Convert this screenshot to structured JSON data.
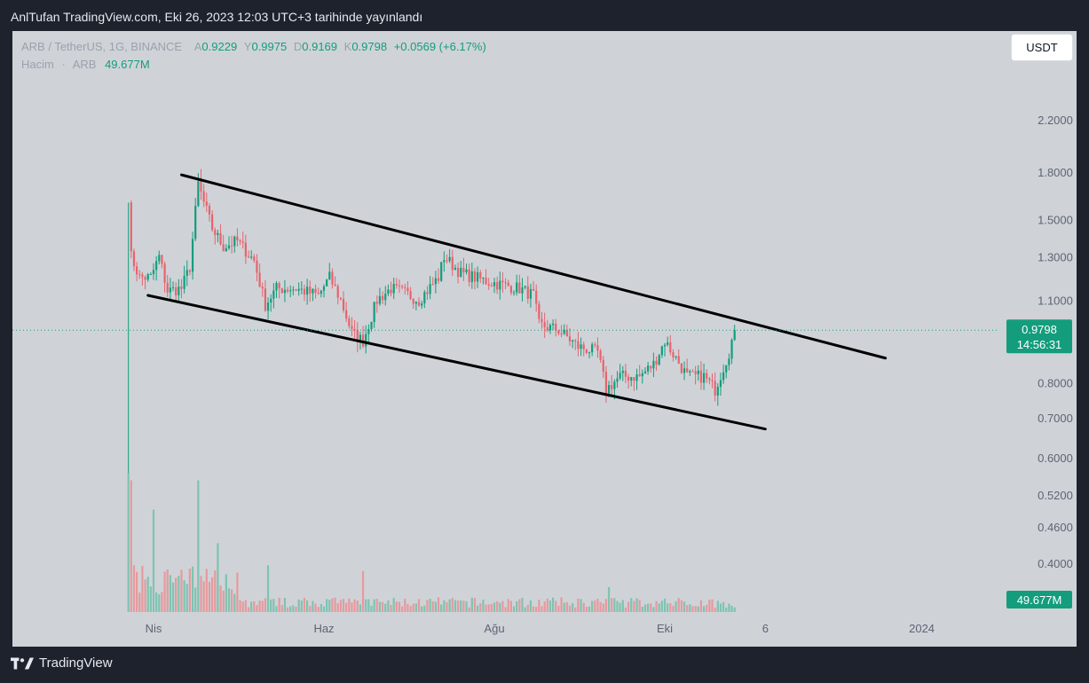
{
  "header": {
    "caption": "AnlTufan TradingView.com, Eki 26, 2023 12:03 UTC+3 tarihinde yayınlandı"
  },
  "legend": {
    "symbol": "ARB / TetherUS, 1G, BINANCE",
    "open_label": "A",
    "open": "0.9229",
    "high_label": "Y",
    "high": "0.9975",
    "low_label": "D",
    "low": "0.9169",
    "close_label": "K",
    "close": "0.9798",
    "change": "+0.0569 (+6.17%)",
    "volume_label": "Hacim",
    "volume_symbol": "ARB",
    "volume_value": "49.677M"
  },
  "currency_button": "USDT",
  "footer": {
    "brand": "TradingView"
  },
  "colors": {
    "up": "#139d7c",
    "down": "#e8636c",
    "up_volume": "#7fc3b1",
    "down_volume": "#e69a9d",
    "background": "#cfd3d8",
    "frame": "#1e222d",
    "trendline": "#000000"
  },
  "chart_data": {
    "type": "candlestick",
    "scale": "log",
    "y_axis_ticks": [
      2.2,
      1.8,
      1.5,
      1.3,
      1.1,
      0.8,
      0.7,
      0.6,
      0.52,
      0.46,
      0.4
    ],
    "y_axis_labels": [
      "2.2000",
      "1.8000",
      "1.5000",
      "1.3000",
      "1.1000",
      "0.8000",
      "0.7000",
      "0.6000",
      "0.5200",
      "0.4600",
      "0.4000"
    ],
    "x_axis_labels": [
      {
        "label": "Nis",
        "date": "2023-04-01"
      },
      {
        "label": "Haz",
        "date": "2023-06-01"
      },
      {
        "label": "Ağu",
        "date": "2023-08-01"
      },
      {
        "label": "Eki",
        "date": "2023-10-01"
      },
      {
        "label": "6",
        "date": "2023-11-06"
      },
      {
        "label": "2024",
        "date": "2024-01-01"
      }
    ],
    "last_price": {
      "value": 0.9798,
      "label": "0.9798",
      "countdown": "14:56:31"
    },
    "volume_last": {
      "label": "49.677M"
    },
    "anchors": [
      {
        "date": "2023-03-23",
        "close": 0.5
      },
      {
        "date": "2023-03-24",
        "close": 1.3
      },
      {
        "date": "2023-03-27",
        "close": 1.2
      },
      {
        "date": "2023-03-31",
        "close": 1.2
      },
      {
        "date": "2023-04-03",
        "close": 1.3
      },
      {
        "date": "2023-04-06",
        "close": 1.14
      },
      {
        "date": "2023-04-11",
        "close": 1.15
      },
      {
        "date": "2023-04-14",
        "close": 1.25
      },
      {
        "date": "2023-04-17",
        "close": 1.72
      },
      {
        "date": "2023-04-19",
        "close": 1.6
      },
      {
        "date": "2023-04-22",
        "close": 1.45
      },
      {
        "date": "2023-04-26",
        "close": 1.35
      },
      {
        "date": "2023-05-01",
        "close": 1.38
      },
      {
        "date": "2023-05-07",
        "close": 1.28
      },
      {
        "date": "2023-05-11",
        "close": 1.08
      },
      {
        "date": "2023-05-15",
        "close": 1.15
      },
      {
        "date": "2023-05-22",
        "close": 1.15
      },
      {
        "date": "2023-05-30",
        "close": 1.12
      },
      {
        "date": "2023-06-03",
        "close": 1.2
      },
      {
        "date": "2023-06-07",
        "close": 1.1
      },
      {
        "date": "2023-06-11",
        "close": 0.97
      },
      {
        "date": "2023-06-15",
        "close": 0.94
      },
      {
        "date": "2023-06-20",
        "close": 1.1
      },
      {
        "date": "2023-06-25",
        "close": 1.15
      },
      {
        "date": "2023-06-30",
        "close": 1.13
      },
      {
        "date": "2023-07-05",
        "close": 1.1
      },
      {
        "date": "2023-07-12",
        "close": 1.2
      },
      {
        "date": "2023-07-14",
        "close": 1.3
      },
      {
        "date": "2023-07-20",
        "close": 1.22
      },
      {
        "date": "2023-07-30",
        "close": 1.18
      },
      {
        "date": "2023-08-10",
        "close": 1.15
      },
      {
        "date": "2023-08-15",
        "close": 1.12
      },
      {
        "date": "2023-08-17",
        "close": 1.0
      },
      {
        "date": "2023-08-24",
        "close": 0.98
      },
      {
        "date": "2023-08-31",
        "close": 0.92
      },
      {
        "date": "2023-09-07",
        "close": 0.9
      },
      {
        "date": "2023-09-10",
        "close": 0.78
      },
      {
        "date": "2023-09-15",
        "close": 0.82
      },
      {
        "date": "2023-09-22",
        "close": 0.82
      },
      {
        "date": "2023-09-27",
        "close": 0.86
      },
      {
        "date": "2023-10-01",
        "close": 0.94
      },
      {
        "date": "2023-10-05",
        "close": 0.88
      },
      {
        "date": "2023-10-09",
        "close": 0.82
      },
      {
        "date": "2023-10-15",
        "close": 0.82
      },
      {
        "date": "2023-10-19",
        "close": 0.78
      },
      {
        "date": "2023-10-24",
        "close": 0.9
      },
      {
        "date": "2023-10-26",
        "close": 0.9798
      }
    ],
    "trendlines": [
      {
        "name": "upper-channel",
        "start": {
          "date": "2023-04-11",
          "price": 1.78
        },
        "end": {
          "date": "2023-12-19",
          "price": 0.88
        }
      },
      {
        "name": "lower-channel",
        "start": {
          "date": "2023-03-30",
          "price": 1.12
        },
        "end": {
          "date": "2023-11-06",
          "price": 0.67
        }
      }
    ],
    "volume": {
      "peaks_M": [
        {
          "date": "2023-03-23",
          "value": 950
        },
        {
          "date": "2023-03-24",
          "value": 900
        },
        {
          "date": "2023-04-01",
          "value": 700
        },
        {
          "date": "2023-04-17",
          "value": 900
        },
        {
          "date": "2023-04-24",
          "value": 470
        },
        {
          "date": "2023-05-12",
          "value": 320
        },
        {
          "date": "2023-06-15",
          "value": 280
        },
        {
          "date": "2023-09-11",
          "value": 170
        }
      ]
    }
  }
}
